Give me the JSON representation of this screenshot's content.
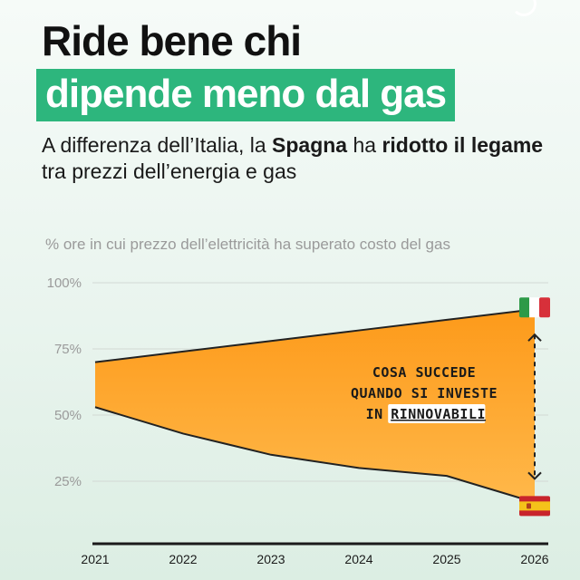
{
  "header": {
    "title_line1": "Ride bene chi",
    "title_line2": "dipende meno dal gas",
    "subtitle_parts": [
      {
        "text": "A differenza dell’Italia, la ",
        "bold": false
      },
      {
        "text": "Spagna",
        "bold": true
      },
      {
        "text": " ha ",
        "bold": false
      },
      {
        "text": "ridotto il legame",
        "bold": true
      },
      {
        "text": " tra prezzi dell’energia e gas",
        "bold": false
      }
    ]
  },
  "colors": {
    "accent_green": "#2db67d",
    "band_top": "#fd9a1a",
    "band_bottom": "#ffb84a"
  },
  "chart_data": {
    "type": "area",
    "title": "% ore in cui prezzo dell’elettricità ha superato costo del gas",
    "x": [
      2021,
      2022,
      2023,
      2024,
      2025,
      2026
    ],
    "x_tick_labels": [
      "2021",
      "2022",
      "2023",
      "2024",
      "2025",
      "2026"
    ],
    "y_tick_labels": [
      "100%",
      "75%",
      "50%",
      "25%"
    ],
    "y_ticks": [
      100,
      75,
      50,
      25
    ],
    "ylim": [
      0,
      100
    ],
    "series": [
      {
        "name": "Italia",
        "icon": "italy-flag-icon",
        "values": [
          70,
          74,
          78,
          82,
          86,
          90
        ]
      },
      {
        "name": "Spagna",
        "icon": "spain-flag-icon",
        "values": [
          53,
          43,
          35,
          30,
          27,
          17
        ]
      }
    ],
    "annotation": {
      "lines": [
        "COSA SUCCEDE",
        "QUANDO SI INVESTE"
      ],
      "prefix": "IN ",
      "highlight": "RINNOVABILI"
    },
    "grid": true
  }
}
